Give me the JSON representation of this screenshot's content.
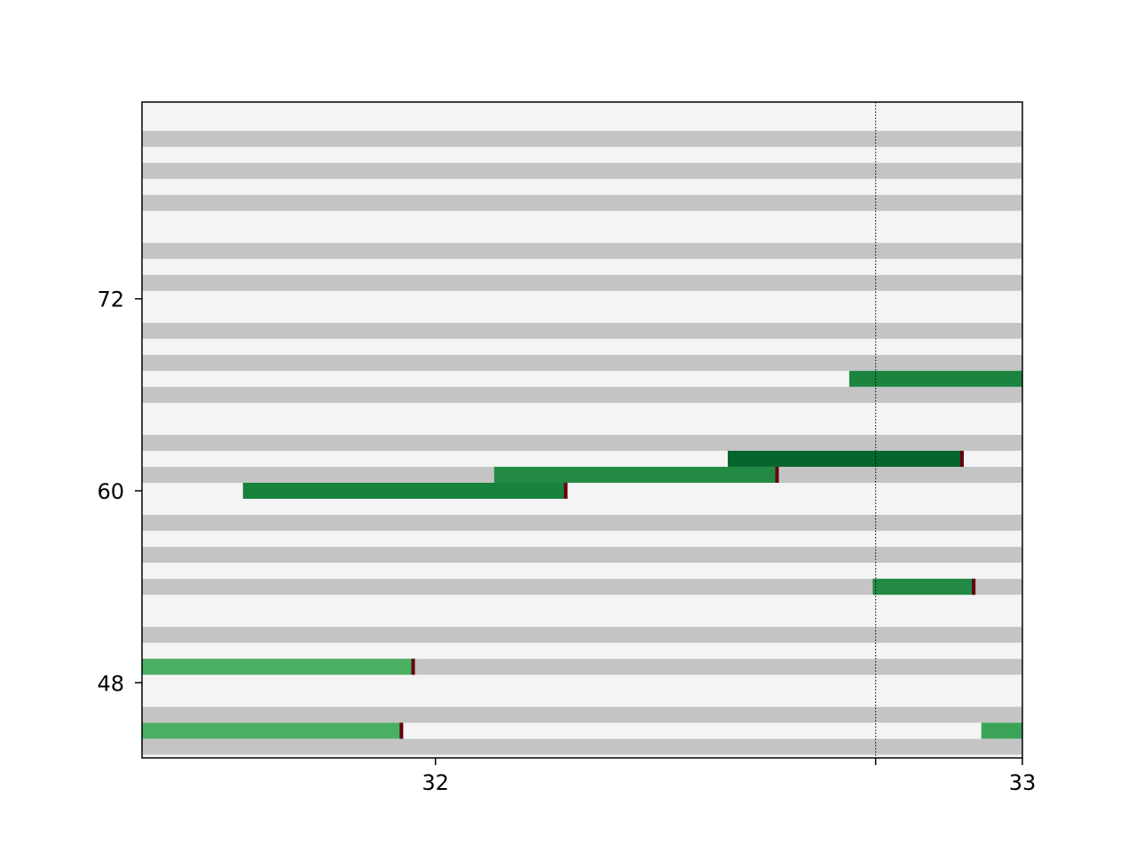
{
  "chart_data": {
    "type": "piano-roll",
    "x_axis": {
      "range": [
        31.5,
        33.0
      ],
      "ticks": [
        32,
        33
      ],
      "tick_labels": [
        "32",
        "33"
      ],
      "unlabeled_tick": 32.75
    },
    "y_axis": {
      "range": [
        43.3,
        84.3
      ],
      "ticks": [
        48,
        60,
        72
      ],
      "tick_labels": [
        "48",
        "60",
        "72"
      ]
    },
    "marker_line": {
      "x": 32.75,
      "style": "dotted"
    },
    "key_band_colors": {
      "white": "#f4f4f4",
      "black": "#c4c4c4"
    },
    "note_end_color": "#67000d",
    "notes": [
      {
        "pitch": 45,
        "start": 31.5,
        "end": 31.945,
        "color": "#4aaf61"
      },
      {
        "pitch": 45,
        "start": 32.93,
        "end": 33.0,
        "color": "#3ba458",
        "clipped": true
      },
      {
        "pitch": 49,
        "start": 31.5,
        "end": 31.965,
        "color": "#4aaf61"
      },
      {
        "pitch": 54,
        "start": 32.745,
        "end": 32.92,
        "color": "#228a44"
      },
      {
        "pitch": 60,
        "start": 31.672,
        "end": 32.225,
        "color": "#18823d"
      },
      {
        "pitch": 61,
        "start": 32.1,
        "end": 32.585,
        "color": "#228a44"
      },
      {
        "pitch": 62,
        "start": 32.498,
        "end": 32.9,
        "color": "#05652c"
      },
      {
        "pitch": 67,
        "start": 32.705,
        "end": 33.005,
        "color": "#1b8540"
      }
    ]
  }
}
